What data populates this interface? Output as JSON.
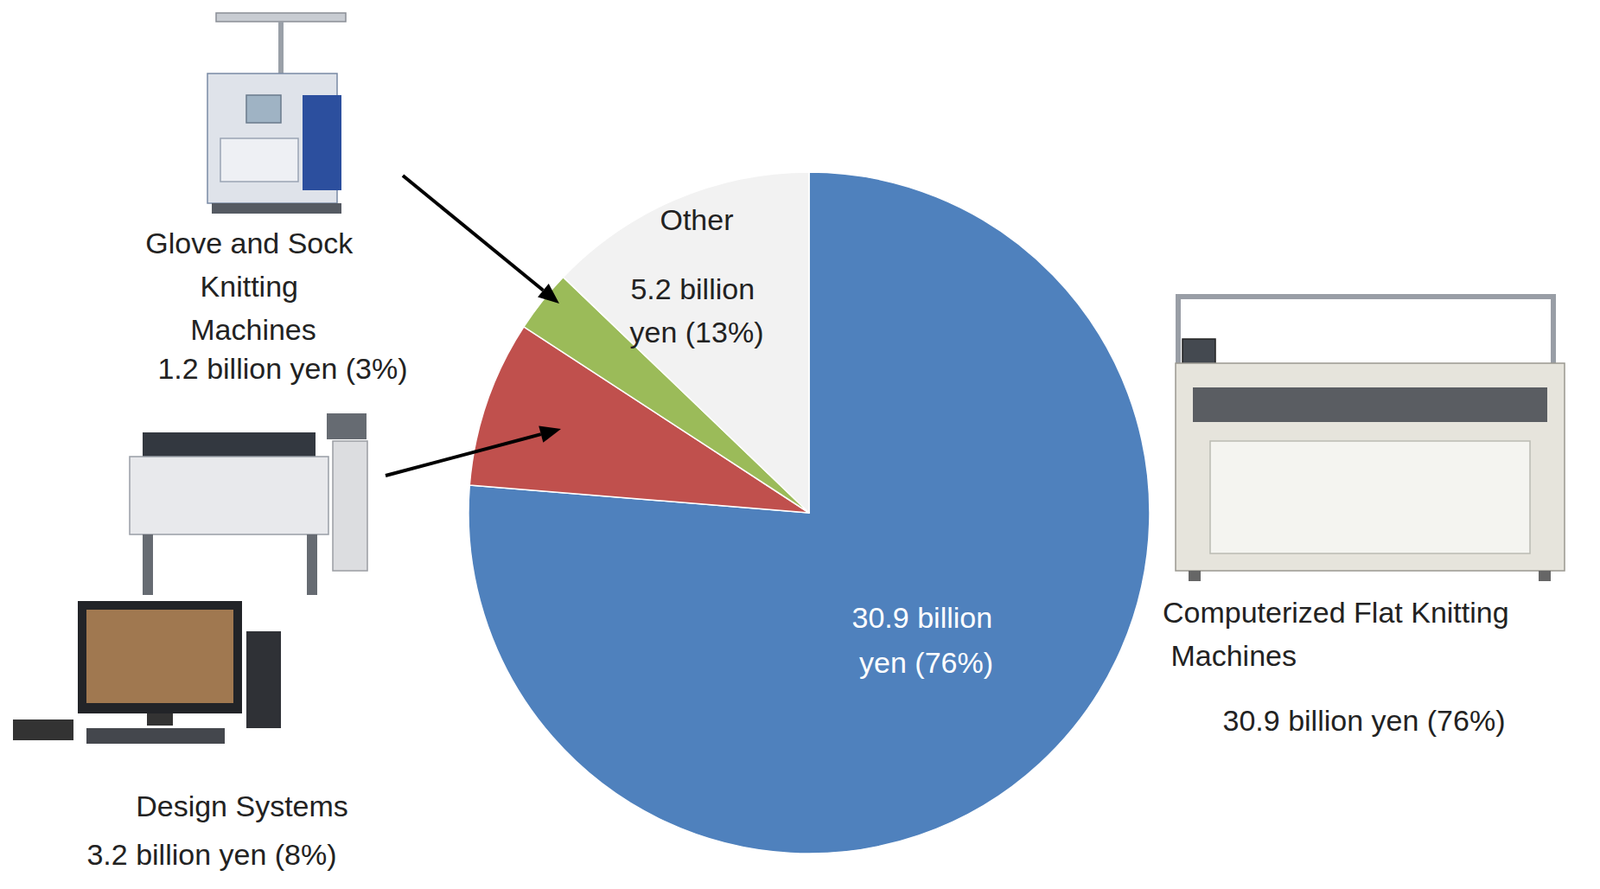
{
  "chart_data": {
    "type": "pie",
    "categories": [
      "Computerized Flat Knitting Machines",
      "Design Systems",
      "Glove and Sock Knitting Machines",
      "Other"
    ],
    "values": [
      30.9,
      3.2,
      1.2,
      5.2
    ],
    "value_labels": [
      "30.9 billion yen (76%)",
      "3.2 billion yen (8%)",
      "1.2 billion yen (3%)",
      "5.2 billion yen (13%)"
    ],
    "colors": [
      "#4f81bd",
      "#c0504d",
      "#9bbb59",
      "#f2f2f2"
    ],
    "data_labels": true
  }
}
